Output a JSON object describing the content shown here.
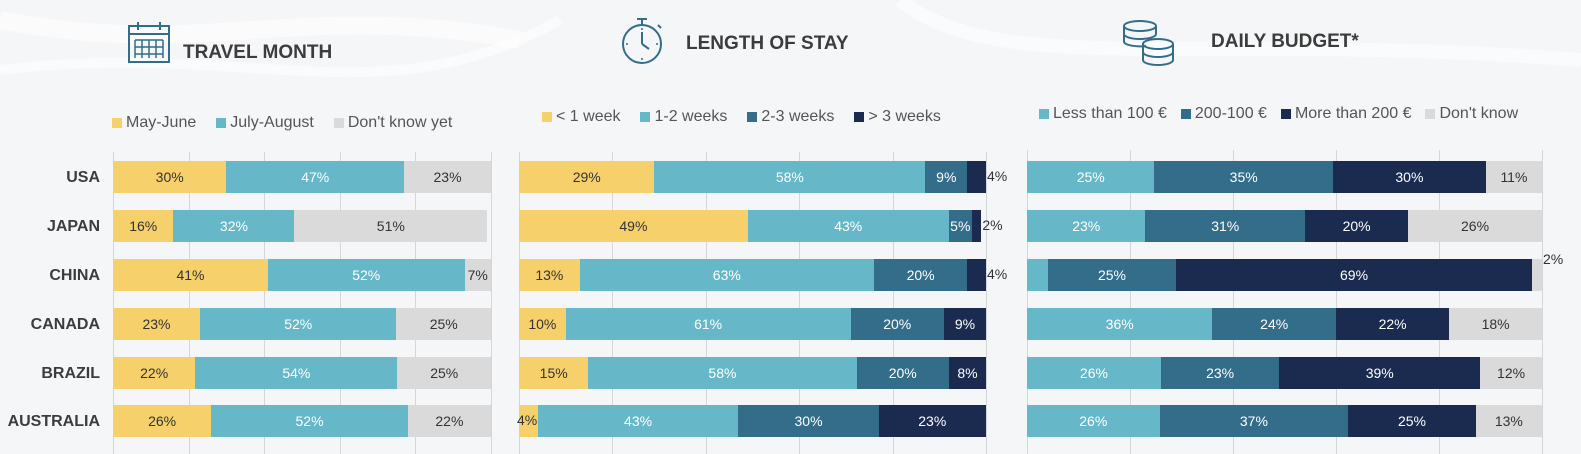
{
  "colors": {
    "yellow": "#f6d06a",
    "teal": "#66b8c8",
    "steel": "#336d8a",
    "navy": "#1a2b4f",
    "grey": "#dadada"
  },
  "countries": [
    "USA",
    "JAPAN",
    "CHINA",
    "CANADA",
    "BRAZIL",
    "AUSTRALIA"
  ],
  "chart_data": [
    {
      "type": "bar",
      "title": "TRAVEL MONTH",
      "icon": "calendar-icon",
      "orientation": "horizontal-stacked",
      "categories": [
        "USA",
        "JAPAN",
        "CHINA",
        "CANADA",
        "BRAZIL",
        "AUSTRALIA"
      ],
      "series": [
        {
          "name": "May-June",
          "color": "#f6d06a",
          "values": [
            30,
            16,
            41,
            23,
            22,
            26
          ]
        },
        {
          "name": "July-August",
          "color": "#66b8c8",
          "values": [
            47,
            32,
            52,
            52,
            54,
            52
          ]
        },
        {
          "name": "Don't know yet",
          "color": "#dadada",
          "values": [
            23,
            51,
            7,
            25,
            25,
            22
          ]
        }
      ],
      "xlim": [
        0,
        100
      ],
      "grid": true,
      "legend": "top"
    },
    {
      "type": "bar",
      "title": "LENGTH OF STAY",
      "icon": "stopwatch-icon",
      "orientation": "horizontal-stacked",
      "categories": [
        "USA",
        "JAPAN",
        "CHINA",
        "CANADA",
        "BRAZIL",
        "AUSTRALIA"
      ],
      "series": [
        {
          "name": "< 1 week",
          "color": "#f6d06a",
          "values": [
            29,
            49,
            13,
            10,
            15,
            4
          ]
        },
        {
          "name": "1-2 weeks",
          "color": "#66b8c8",
          "values": [
            58,
            43,
            63,
            61,
            58,
            43
          ]
        },
        {
          "name": "2-3 weeks",
          "color": "#336d8a",
          "values": [
            9,
            5,
            20,
            20,
            20,
            30
          ]
        },
        {
          "name": "> 3 weeks",
          "color": "#1a2b4f",
          "values": [
            4,
            2,
            4,
            9,
            8,
            23
          ]
        }
      ],
      "xlim": [
        0,
        100
      ],
      "grid": true,
      "legend": "top"
    },
    {
      "type": "bar",
      "title": "DAILY BUDGET*",
      "icon": "coins-icon",
      "orientation": "horizontal-stacked",
      "categories": [
        "USA",
        "JAPAN",
        "CHINA",
        "CANADA",
        "BRAZIL",
        "AUSTRALIA"
      ],
      "series": [
        {
          "name": "Less than 100 €",
          "color": "#66b8c8",
          "values": [
            25,
            23,
            4,
            36,
            26,
            26
          ]
        },
        {
          "name": "200-100 €",
          "color": "#336d8a",
          "values": [
            35,
            31,
            25,
            24,
            23,
            37
          ]
        },
        {
          "name": "More than 200 €",
          "color": "#1a2b4f",
          "values": [
            30,
            20,
            69,
            22,
            39,
            25
          ]
        },
        {
          "name": "Don't know",
          "color": "#dadada",
          "values": [
            11,
            26,
            2,
            18,
            12,
            13
          ]
        }
      ],
      "hidden_labels": [
        [],
        [],
        [
          0
        ],
        [],
        [],
        []
      ],
      "xlim": [
        0,
        100
      ],
      "grid": true,
      "legend": "top"
    }
  ]
}
